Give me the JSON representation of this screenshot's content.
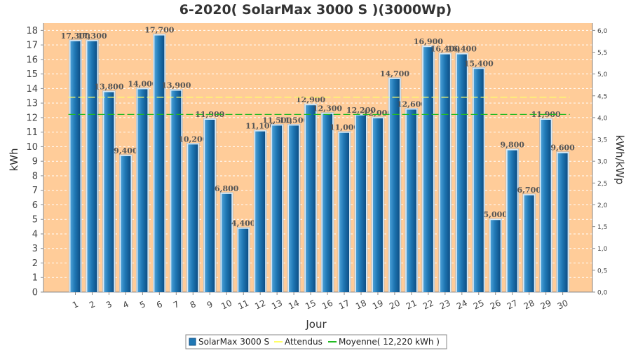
{
  "chart_data": {
    "type": "bar",
    "title": "6-2020( SolarMax 3000 S )(3000Wp)",
    "xlabel": "Jour",
    "ylabel": "kWh",
    "ylabel_right": "kWh/kWp",
    "ylim": [
      0,
      18.5
    ],
    "ylim_right": [
      0,
      6.1667
    ],
    "categories": [
      "1",
      "2",
      "3",
      "4",
      "5",
      "6",
      "7",
      "8",
      "9",
      "10",
      "11",
      "12",
      "13",
      "14",
      "15",
      "16",
      "17",
      "18",
      "19",
      "20",
      "21",
      "22",
      "23",
      "24",
      "25",
      "26",
      "27",
      "28",
      "29",
      "30"
    ],
    "series": [
      {
        "name": "SolarMax 3000 S",
        "values": [
          17.3,
          17.3,
          13.8,
          9.4,
          14.0,
          17.7,
          13.9,
          10.2,
          11.9,
          6.8,
          4.4,
          11.1,
          11.5,
          11.5,
          12.9,
          12.3,
          11.0,
          12.2,
          12.0,
          14.7,
          12.6,
          16.9,
          16.4,
          16.4,
          15.4,
          5.0,
          9.8,
          6.7,
          11.9,
          9.6
        ],
        "labels": [
          "17,300",
          "17,300",
          "13,800",
          "9,400",
          "14,000",
          "17,700",
          "13,900",
          "10,200",
          "11,900",
          "6,800",
          "4,400",
          "11,100",
          "11,500",
          "11,500",
          "12,900",
          "12,300",
          "11,000",
          "12,200",
          "12,000",
          "14,700",
          "12,600",
          "16,900",
          "16,400",
          "16,400",
          "15,400",
          "5,000",
          "9,800",
          "6,700",
          "11,900",
          "9,600"
        ],
        "color": "#1f77b4"
      }
    ],
    "reference_lines": [
      {
        "name": "Attendus",
        "value": 13.4,
        "color": "#ffff66"
      },
      {
        "name": "Moyenne( 12,220 kWh )",
        "value": 12.22,
        "color": "#22bb22"
      }
    ],
    "yticks_left": [
      "0",
      "1",
      "2",
      "3",
      "4",
      "5",
      "6",
      "7",
      "8",
      "9",
      "10",
      "11",
      "12",
      "13",
      "14",
      "15",
      "16",
      "17",
      "18"
    ],
    "yticks_right": [
      "0,0",
      "0,5",
      "1,0",
      "1,5",
      "2,0",
      "2,5",
      "3,0",
      "3,5",
      "4,0",
      "4,5",
      "5,0",
      "5,5",
      "6,0"
    ],
    "plot_background": "#ffcc99",
    "grid": true,
    "legend_position": "bottom"
  }
}
